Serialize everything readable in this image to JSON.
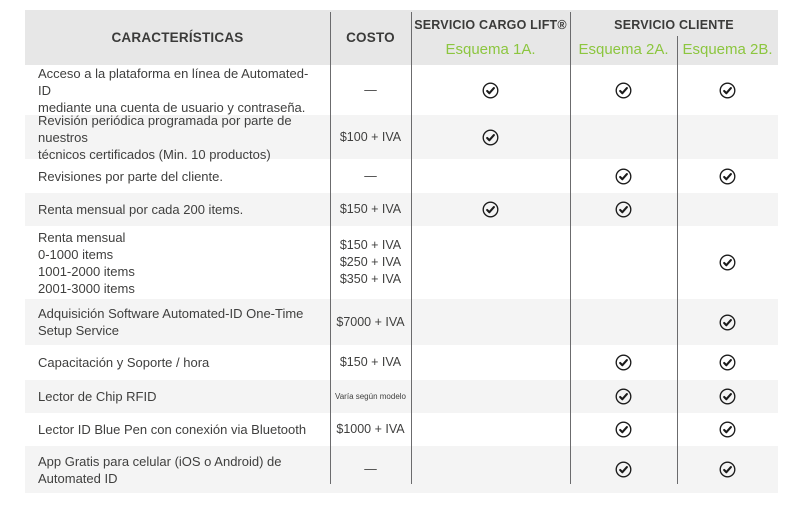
{
  "colors": {
    "accent_green": "#8CC63F",
    "header_bg": "#E7E7E7",
    "row_stripe_bg": "#F4F4F4",
    "text": "#3F3F3E",
    "divider_line": "#6B6B6D",
    "check_icon": "#1B1B1B"
  },
  "icons": {
    "check": "circled-checkmark"
  },
  "chart_data": {
    "type": "table",
    "title": "",
    "column_groups": [
      {
        "label": "CARACTERÍSTICAS",
        "subcolumns": []
      },
      {
        "label": "COSTO",
        "subcolumns": []
      },
      {
        "label": "SERVICIO CARGO LIFT®",
        "subcolumns": [
          "Esquema 1A."
        ]
      },
      {
        "label": "SERVICIO CLIENTE",
        "subcolumns": [
          "Esquema 2A.",
          "Esquema 2B."
        ]
      }
    ],
    "rows": [
      {
        "caracteristica": "Acceso a la plataforma en línea de Automated-ID\nmediante una cuenta de usuario y contraseña.",
        "costo": "—",
        "costo_is_note": false,
        "esquema_1a": true,
        "esquema_2a": true,
        "esquema_2b": true
      },
      {
        "caracteristica": "Revisión periódica programada por parte de nuestros\ntécnicos certificados (Min. 10 productos)",
        "costo": "$100 + IVA",
        "costo_is_note": false,
        "esquema_1a": true,
        "esquema_2a": false,
        "esquema_2b": false
      },
      {
        "caracteristica": "Revisiones por parte del cliente.",
        "costo": "—",
        "costo_is_note": false,
        "esquema_1a": false,
        "esquema_2a": true,
        "esquema_2b": true
      },
      {
        "caracteristica": "Renta mensual por cada 200 items.",
        "costo": "$150 + IVA",
        "costo_is_note": false,
        "esquema_1a": true,
        "esquema_2a": true,
        "esquema_2b": false
      },
      {
        "caracteristica": "Renta mensual\n0-1000 items\n1001-2000 items\n2001-3000 items",
        "costo": "$150 + IVA\n$250 + IVA\n$350 + IVA",
        "costo_is_note": false,
        "esquema_1a": false,
        "esquema_2a": false,
        "esquema_2b": true
      },
      {
        "caracteristica": "Adquisición Software Automated-ID One-Time\nSetup Service",
        "costo": "$7000 + IVA",
        "costo_is_note": false,
        "esquema_1a": false,
        "esquema_2a": false,
        "esquema_2b": true
      },
      {
        "caracteristica": "Capacitación y Soporte / hora",
        "costo": "$150 + IVA",
        "costo_is_note": false,
        "esquema_1a": false,
        "esquema_2a": true,
        "esquema_2b": true
      },
      {
        "caracteristica": "Lector de Chip RFID",
        "costo": "Varía según modelo",
        "costo_is_note": true,
        "esquema_1a": false,
        "esquema_2a": true,
        "esquema_2b": true
      },
      {
        "caracteristica": "Lector ID Blue Pen con conexión via Bluetooth",
        "costo": "$1000 + IVA",
        "costo_is_note": false,
        "esquema_1a": false,
        "esquema_2a": true,
        "esquema_2b": true
      },
      {
        "caracteristica": "App Gratis para celular (iOS o Android) de\nAutomated ID",
        "costo": "—",
        "costo_is_note": false,
        "esquema_1a": false,
        "esquema_2a": true,
        "esquema_2b": true
      }
    ]
  }
}
